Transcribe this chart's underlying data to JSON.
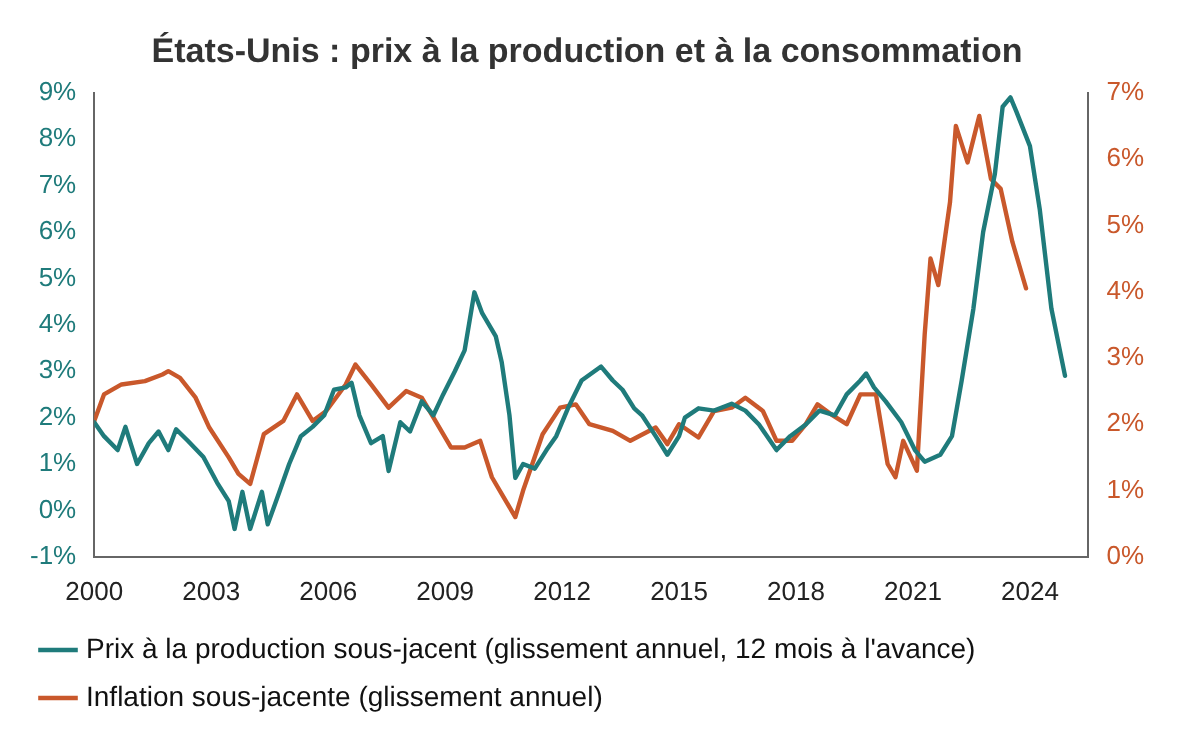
{
  "chart_data": {
    "type": "line",
    "title": "États-Unis : prix à la production et à la consommation",
    "xlim": [
      2000,
      2025.5
    ],
    "xticks": [
      2000,
      2003,
      2006,
      2009,
      2012,
      2015,
      2018,
      2021,
      2024
    ],
    "ylim": [
      -1,
      9
    ],
    "yticks": [
      {
        "value": -1,
        "label": "-1%"
      },
      {
        "value": 0,
        "label": "0%"
      },
      {
        "value": 1,
        "label": "1%"
      },
      {
        "value": 2,
        "label": "2%"
      },
      {
        "value": 3,
        "label": "3%"
      },
      {
        "value": 4,
        "label": "4%"
      },
      {
        "value": 5,
        "label": "5%"
      },
      {
        "value": 6,
        "label": "6%"
      },
      {
        "value": 7,
        "label": "7%"
      },
      {
        "value": 8,
        "label": "8%"
      },
      {
        "value": 9,
        "label": "9%"
      }
    ],
    "y2lim": [
      0,
      7
    ],
    "y2ticks": [
      {
        "value": 0,
        "label": "0%"
      },
      {
        "value": 1,
        "label": "1%"
      },
      {
        "value": 2,
        "label": "2%"
      },
      {
        "value": 3,
        "label": "3%"
      },
      {
        "value": 4,
        "label": "4%"
      },
      {
        "value": 5,
        "label": "5%"
      },
      {
        "value": 6,
        "label": "6%"
      },
      {
        "value": 7,
        "label": "7%"
      }
    ],
    "grid": false,
    "legend": "bottom",
    "marker": "none",
    "line_style": "solid",
    "series": [
      {
        "name": "Prix à la production sous-jacent (glissement annuel, 12 mois à l'avance)",
        "color": "#1f7b7b",
        "x": [
          2000,
          2000.25,
          2000.6,
          2000.8,
          2001.1,
          2001.4,
          2001.65,
          2001.9,
          2002.1,
          2002.4,
          2002.8,
          2003.15,
          2003.45,
          2003.6,
          2003.8,
          2004.0,
          2004.3,
          2004.45,
          2004.75,
          2005.0,
          2005.3,
          2005.6,
          2005.9,
          2006.15,
          2006.45,
          2006.6,
          2006.8,
          2007.1,
          2007.4,
          2007.55,
          2007.85,
          2008.1,
          2008.4,
          2008.7,
          2008.95,
          2009.25,
          2009.5,
          2009.75,
          2009.95,
          2010.3,
          2010.45,
          2010.65,
          2010.8,
          2011.0,
          2011.3,
          2011.6,
          2011.85,
          2012.15,
          2012.5,
          2013.0,
          2013.3,
          2013.55,
          2013.85,
          2014.05,
          2014.4,
          2014.7,
          2015.0,
          2015.15,
          2015.5,
          2015.9,
          2016.35,
          2016.7,
          2017.05,
          2017.5,
          2017.85,
          2018.25,
          2018.6,
          2019.0,
          2019.3,
          2019.65,
          2019.8,
          2020.0,
          2020.3,
          2020.7,
          2021.05,
          2021.3,
          2021.7,
          2022.0,
          2022.25,
          2022.55,
          2022.8,
          2023.1,
          2023.3,
          2023.5,
          2023.65,
          2024.0,
          2024.25,
          2024.55,
          2024.9
        ],
        "values": [
          1.9,
          1.6,
          1.3,
          1.8,
          1.0,
          1.45,
          1.7,
          1.3,
          1.75,
          1.5,
          1.15,
          0.6,
          0.2,
          -0.4,
          0.4,
          -0.4,
          0.4,
          -0.3,
          0.4,
          1.0,
          1.6,
          1.8,
          2.05,
          2.6,
          2.65,
          2.75,
          2.05,
          1.45,
          1.6,
          0.85,
          1.9,
          1.7,
          2.35,
          2.05,
          2.5,
          3.0,
          3.45,
          4.7,
          4.25,
          3.75,
          3.2,
          2.05,
          0.7,
          1.0,
          0.9,
          1.3,
          1.6,
          2.2,
          2.8,
          3.1,
          2.8,
          2.6,
          2.2,
          2.05,
          1.6,
          1.2,
          1.6,
          2.0,
          2.2,
          2.15,
          2.3,
          2.15,
          1.85,
          1.3,
          1.6,
          1.85,
          2.15,
          2.05,
          2.5,
          2.8,
          2.95,
          2.65,
          2.35,
          1.9,
          1.3,
          1.05,
          1.2,
          1.6,
          2.8,
          4.35,
          6.0,
          7.25,
          8.7,
          8.9,
          8.6,
          7.85,
          6.5,
          4.35,
          2.9
        ]
      },
      {
        "name": "Inflation sous-jacente (glissement annuel)",
        "color": "#c9582b",
        "axis": "y2",
        "x": [
          2000,
          2000.25,
          2000.7,
          2001.3,
          2001.75,
          2001.9,
          2002.2,
          2002.6,
          2002.95,
          2003.45,
          2003.7,
          2004.0,
          2004.35,
          2004.85,
          2005.2,
          2005.6,
          2005.95,
          2006.45,
          2006.7,
          2007.1,
          2007.55,
          2008.0,
          2008.4,
          2008.8,
          2009.15,
          2009.5,
          2009.9,
          2010.2,
          2010.45,
          2010.8,
          2011.0,
          2011.5,
          2011.95,
          2012.35,
          2012.7,
          2013.3,
          2013.75,
          2014.4,
          2014.7,
          2015.0,
          2015.5,
          2015.9,
          2016.35,
          2016.7,
          2017.15,
          2017.5,
          2017.9,
          2018.25,
          2018.55,
          2018.9,
          2019.3,
          2019.65,
          2020.05,
          2020.35,
          2020.55,
          2020.75,
          2021.1,
          2021.3,
          2021.45,
          2021.65,
          2021.95,
          2022.1,
          2022.4,
          2022.7,
          2023.0,
          2023.25,
          2023.55,
          2023.9
        ],
        "values": [
          2.05,
          2.45,
          2.6,
          2.65,
          2.75,
          2.8,
          2.7,
          2.4,
          1.95,
          1.5,
          1.25,
          1.1,
          1.85,
          2.05,
          2.45,
          2.05,
          2.2,
          2.6,
          2.9,
          2.6,
          2.25,
          2.5,
          2.4,
          2.0,
          1.65,
          1.65,
          1.75,
          1.2,
          0.95,
          0.6,
          1.0,
          1.85,
          2.25,
          2.3,
          2.0,
          1.9,
          1.75,
          1.95,
          1.7,
          2.0,
          1.8,
          2.2,
          2.25,
          2.4,
          2.2,
          1.75,
          1.75,
          2.0,
          2.3,
          2.15,
          2.0,
          2.45,
          2.45,
          1.4,
          1.2,
          1.75,
          1.3,
          3.35,
          4.5,
          4.1,
          5.35,
          6.5,
          5.95,
          6.65,
          5.7,
          5.55,
          4.75,
          4.05
        ]
      }
    ]
  }
}
